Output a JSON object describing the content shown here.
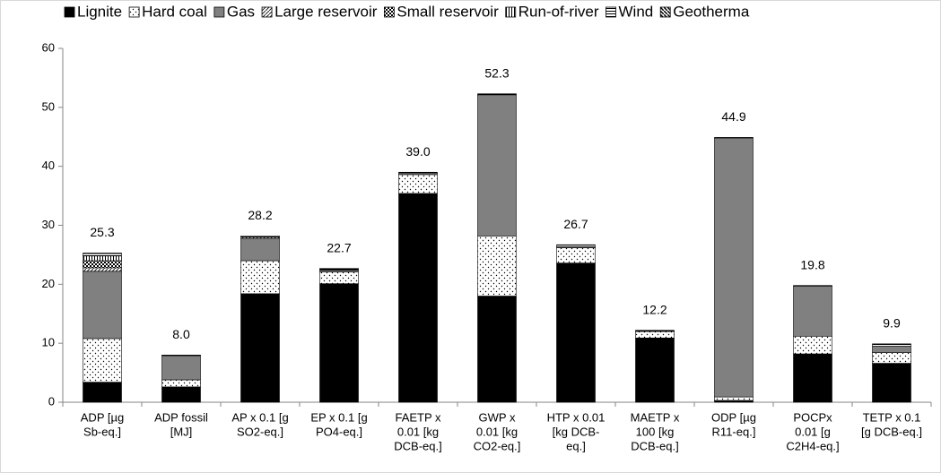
{
  "chart_data": {
    "type": "stacked_bar",
    "categories": [
      [
        "ADP [µg",
        "Sb-eq.]"
      ],
      [
        "ADP fossil",
        "[MJ]"
      ],
      [
        "AP x 0.1 [g",
        "SO2-eq.]"
      ],
      [
        "EP x 0.1 [g",
        "PO4-eq.]"
      ],
      [
        "FAETP x",
        "0.01 [kg",
        "DCB-eq.]"
      ],
      [
        "GWP x",
        "0.01 [kg",
        "CO2-eq.]"
      ],
      [
        "HTP x 0.01",
        "[kg DCB-",
        "eq.]"
      ],
      [
        "MAETP x",
        "100 [kg",
        "DCB-eq.]"
      ],
      [
        "ODP [µg",
        "R11-eq.]"
      ],
      [
        "POCPx",
        "0.01 [g",
        "C2H4-eq.]"
      ],
      [
        "TETP x 0.1",
        "[g DCB-eq.]"
      ]
    ],
    "series": [
      {
        "name": "Lignite",
        "color": "#000000",
        "pattern": "solid",
        "values": [
          3.4,
          2.6,
          18.4,
          20.1,
          35.4,
          18.0,
          23.6,
          10.9,
          0.3,
          8.2,
          6.6
        ]
      },
      {
        "name": "Hard coal",
        "color": "#000000",
        "pattern": "dots",
        "values": [
          7.4,
          1.2,
          5.6,
          2.0,
          3.2,
          10.2,
          2.6,
          1.1,
          0.6,
          3.0,
          1.8
        ]
      },
      {
        "name": "Gas",
        "color": "#808080",
        "pattern": "solid",
        "values": [
          11.4,
          4.1,
          3.8,
          0.3,
          0.2,
          23.8,
          0.2,
          0.1,
          43.9,
          8.5,
          1.1
        ]
      },
      {
        "name": "Large reservoir",
        "color": "#000000",
        "pattern": "diagonal",
        "values": [
          0.6,
          0,
          0.2,
          0.1,
          0,
          0,
          0,
          0,
          0,
          0,
          0
        ]
      },
      {
        "name": "Small reservoir",
        "color": "#000000",
        "pattern": "checker",
        "values": [
          1.2,
          0,
          0,
          0,
          0,
          0,
          0,
          0,
          0,
          0,
          0
        ]
      },
      {
        "name": "Run-of-river",
        "color": "#000000",
        "pattern": "vertical",
        "values": [
          0.8,
          0,
          0,
          0,
          0,
          0,
          0,
          0,
          0,
          0,
          0
        ]
      },
      {
        "name": "Wind",
        "color": "#000000",
        "pattern": "horizontal",
        "values": [
          0.4,
          0.1,
          0.2,
          0.2,
          0.2,
          0.3,
          0.3,
          0.1,
          0.1,
          0.1,
          0.4
        ]
      },
      {
        "name": "Geotherma",
        "color": "#000000",
        "pattern": "diagonal2",
        "values": [
          0.1,
          0,
          0,
          0,
          0,
          0,
          0,
          0,
          0,
          0,
          0
        ]
      }
    ],
    "totals": [
      25.3,
      8,
      28.2,
      22.7,
      39,
      52.3,
      26.7,
      12.2,
      44.9,
      19.8,
      9.9
    ],
    "total_labels": [
      "25.3",
      "8.0",
      "28.2",
      "22.7",
      "39.0",
      "52.3",
      "26.7",
      "12.2",
      "44.9",
      "19.8",
      "9.9"
    ],
    "ylim": [
      0,
      60
    ],
    "yticks": [
      0,
      10,
      20,
      30,
      40,
      50,
      60
    ],
    "grid": false
  }
}
